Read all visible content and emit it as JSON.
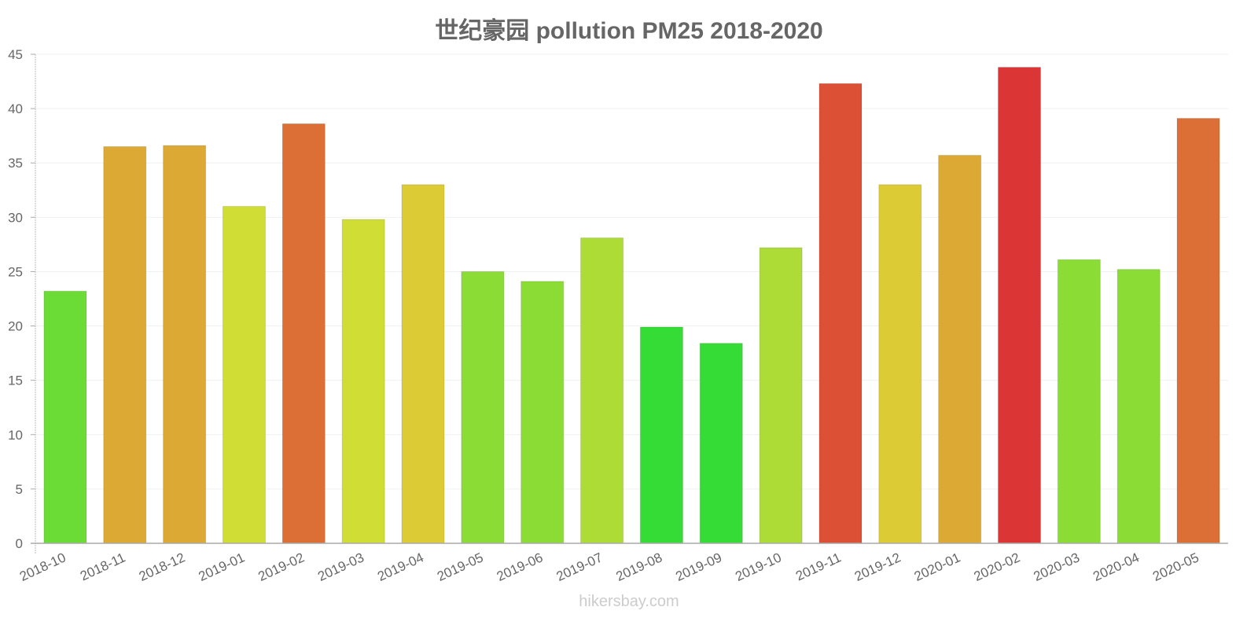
{
  "chart_data": {
    "type": "bar",
    "title": "世纪豪园 pollution PM25 2018-2020",
    "xlabel": "",
    "ylabel": "",
    "ylim": [
      0,
      45
    ],
    "yticks": [
      0,
      5,
      10,
      15,
      20,
      25,
      30,
      35,
      40,
      45
    ],
    "grid": true,
    "legend": null,
    "categories": [
      "2018-10",
      "2018-11",
      "2018-12",
      "2019-01",
      "2019-02",
      "2019-03",
      "2019-04",
      "2019-05",
      "2019-06",
      "2019-07",
      "2019-08",
      "2019-09",
      "2019-10",
      "2019-11",
      "2019-12",
      "2020-01",
      "2020-02",
      "2020-03",
      "2020-04",
      "2020-05"
    ],
    "values": [
      23.2,
      36.5,
      36.6,
      31.0,
      38.6,
      29.8,
      33.0,
      25.0,
      24.1,
      28.1,
      19.9,
      18.4,
      27.2,
      42.3,
      33.0,
      35.7,
      43.8,
      26.1,
      25.2,
      39.1
    ],
    "colors": [
      "#6bdc35",
      "#dca935",
      "#dca935",
      "#cfdd35",
      "#dc6f35",
      "#cfdd35",
      "#dccb35",
      "#8bdc35",
      "#8bdc35",
      "#acdc35",
      "#35dc35",
      "#35dc35",
      "#acdc35",
      "#dc5035",
      "#dccb35",
      "#dca935",
      "#dc3535",
      "#8bdc35",
      "#8bdc35",
      "#dc6f35"
    ]
  },
  "watermark": "hikersbay.com"
}
